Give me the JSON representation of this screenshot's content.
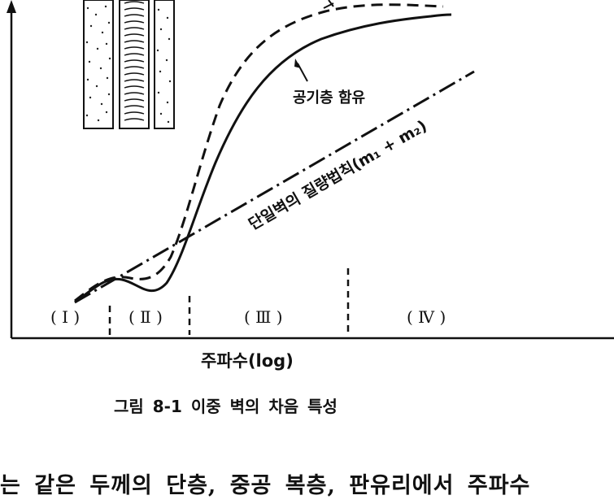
{
  "figure": {
    "regions": [
      "( Ⅰ )",
      "( Ⅱ )",
      "( Ⅲ )",
      "( Ⅳ )"
    ],
    "x_axis_label": "주파수(log)",
    "curve_labels": {
      "air_layer": "공기층 함유",
      "mass_law": "단일벽의 질량법칙(m₁ + m₂)"
    },
    "caption": "그림 8-1  이중 벽의 차음 특성"
  },
  "body_text": "는 같은 두께의 단층, 중공 복층, 판유리에서 주파수"
}
